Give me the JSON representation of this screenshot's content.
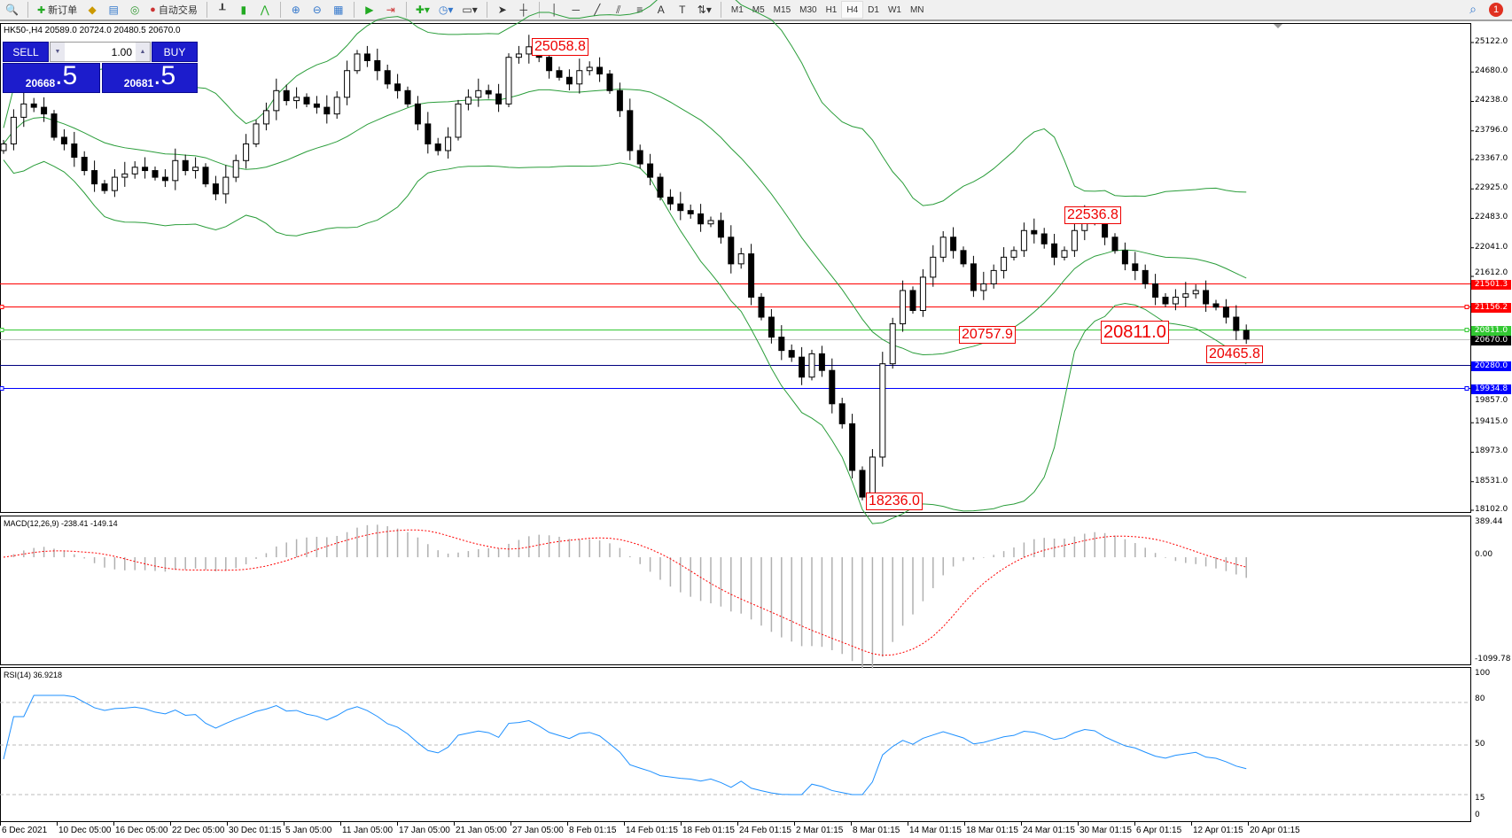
{
  "toolbar": {
    "new_order": "新订单",
    "auto_trading": "自动交易",
    "timeframes": [
      "M1",
      "M5",
      "M15",
      "M30",
      "H1",
      "H4",
      "D1",
      "W1",
      "MN"
    ],
    "active_timeframe": "H4",
    "notifications": "1"
  },
  "chart": {
    "title": "HK50-,H4  20589.0 20724.0 20480.5 20670.0",
    "symbol": "HK50-",
    "timeframe": "H4"
  },
  "trade": {
    "sell": "SELL",
    "buy": "BUY",
    "lot": "1.00",
    "bid_main": "20668",
    "bid_frac": ".5",
    "ask_main": "20681",
    "ask_frac": ".5"
  },
  "price_axis": {
    "ticks": [
      "25122.0",
      "24680.0",
      "24238.0",
      "23796.0",
      "23367.0",
      "22925.0",
      "22483.0",
      "22041.0",
      "21612.0",
      "19857.0",
      "19415.0",
      "18973.0",
      "18531.0",
      "18102.0"
    ],
    "range": [
      18102,
      25122
    ]
  },
  "levels": [
    {
      "price": 21501.3,
      "label": "21501.3",
      "color": "#ff0000",
      "handle": false
    },
    {
      "price": 21156.2,
      "label": "21156.2",
      "color": "#ff0000",
      "handle": true
    },
    {
      "price": 20811.0,
      "label": "20811.0",
      "color": "#32c832",
      "handle": true
    },
    {
      "price": 20670.0,
      "label": "20670.0",
      "color": "#000000",
      "line": "#c0c0c0",
      "handle": false
    },
    {
      "price": 20280.0,
      "label": "20280.0",
      "color": "#0000ff",
      "line": "#000080",
      "handle": false
    },
    {
      "price": 19934.8,
      "label": "19934.8",
      "color": "#0000ff",
      "handle": true
    }
  ],
  "annotations": [
    "25058.8",
    "22536.8",
    "20757.9",
    "20811.0",
    "20465.8",
    "18236.0"
  ],
  "closes": [
    23600,
    24000,
    24200,
    24150,
    24050,
    23700,
    23600,
    23400,
    23200,
    23000,
    22900,
    23100,
    23150,
    23250,
    23200,
    23100,
    23050,
    23350,
    23200,
    23250,
    23000,
    22850,
    23100,
    23350,
    23600,
    23900,
    24100,
    24400,
    24250,
    24300,
    24200,
    24150,
    24050,
    24300,
    24700,
    24950,
    24850,
    24700,
    24500,
    24400,
    24200,
    23900,
    23600,
    23500,
    23700,
    24200,
    24300,
    24400,
    24350,
    24200,
    24900,
    24950,
    25058,
    24900,
    24700,
    24600,
    24500,
    24700,
    24750,
    24650,
    24400,
    24100,
    23500,
    23300,
    23100,
    22800,
    22700,
    22600,
    22550,
    22400,
    22450,
    22200,
    21800,
    21950,
    21300,
    21000,
    20700,
    20500,
    20400,
    20100,
    20450,
    20200,
    19700,
    19400,
    18700,
    18300,
    18900,
    20300,
    20900,
    21400,
    21100,
    21600,
    21900,
    22200,
    22000,
    21800,
    21400,
    21500,
    21700,
    21900,
    22000,
    22300,
    22250,
    22100,
    21900,
    22000,
    22300,
    22500,
    22450,
    22200,
    22000,
    21800,
    21700,
    21500,
    21300,
    21200,
    21300,
    21350,
    21400,
    21200,
    21150,
    21000,
    20800,
    20670
  ],
  "macd": {
    "label": "MACD(12,26,9) -238.41 -149.14",
    "max": "389.44",
    "zero": "0.00",
    "min": "-1099.78",
    "range": [
      -1099.78,
      389.44
    ]
  },
  "rsi": {
    "label": "RSI(14) 36.9218",
    "levels": [
      "100",
      "80",
      "50",
      "15",
      "0"
    ]
  },
  "time_axis": [
    "6 Dec 2021",
    "10 Dec 05:00",
    "16 Dec 05:00",
    "22 Dec 05:00",
    "30 Dec 01:15",
    "5 Jan 05:00",
    "11 Jan 05:00",
    "17 Jan 05:00",
    "21 Jan 05:00",
    "27 Jan 05:00",
    "8 Feb 01:15",
    "14 Feb 01:15",
    "18 Feb 01:15",
    "24 Feb 01:15",
    "2 Mar 01:15",
    "8 Mar 01:15",
    "14 Mar 01:15",
    "18 Mar 01:15",
    "24 Mar 01:15",
    "30 Mar 01:15",
    "6 Apr 01:15",
    "12 Apr 01:15",
    "20 Apr 01:15"
  ],
  "colors": {
    "bands": "#2a9d3a",
    "macd_signal": "#ff0000",
    "macd_hist": "#b0b0b0",
    "rsi": "#1e90ff"
  }
}
